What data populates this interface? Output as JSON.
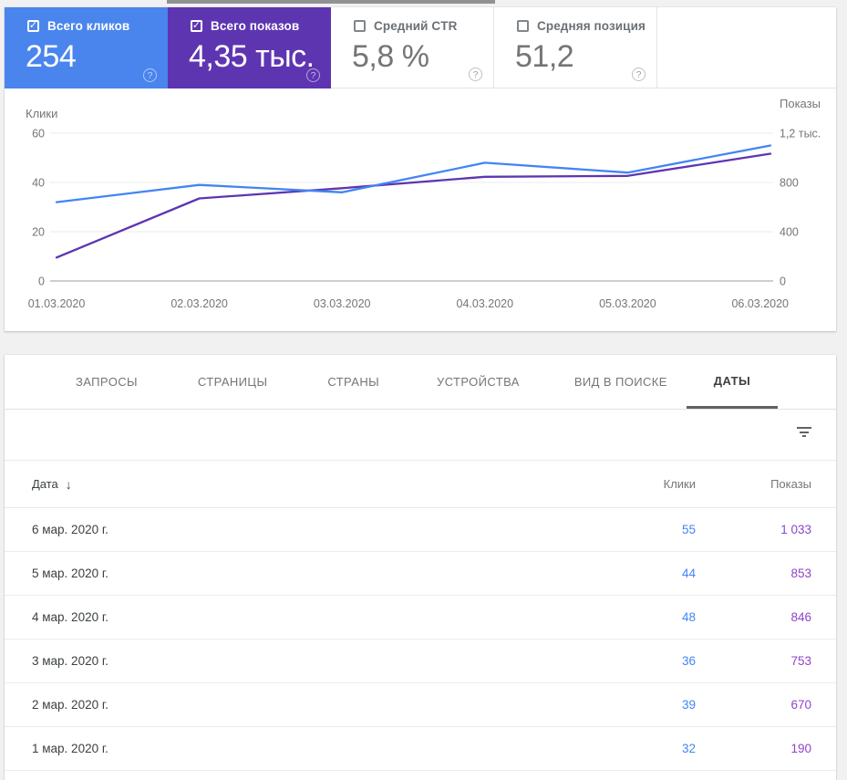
{
  "colors": {
    "clicks_card_bg": "#4a85ee",
    "impressions_card_bg": "#5e35b1",
    "clicks_line": "#4285f4",
    "impressions_line": "#5e35b1",
    "table_clicks_value": "#4285f4",
    "table_impressions_value": "#8f44c8",
    "page_bg": "#f1f1f2",
    "active_tab_underline": "#5f6368"
  },
  "icons": {
    "check": "✓",
    "help": "?",
    "sort_desc": "↓"
  },
  "summary": {
    "cards": [
      {
        "id": "clicks",
        "label": "Всего кликов",
        "value": "254",
        "selected": true
      },
      {
        "id": "impressions",
        "label": "Всего показов",
        "value": "4,35 тыс.",
        "selected": true
      },
      {
        "id": "ctr",
        "label": "Средний CTR",
        "value": "5,8 %",
        "selected": false
      },
      {
        "id": "position",
        "label": "Средняя позиция",
        "value": "51,2",
        "selected": false
      }
    ]
  },
  "chart_data": {
    "type": "line",
    "x": [
      "01.03.2020",
      "02.03.2020",
      "03.03.2020",
      "04.03.2020",
      "05.03.2020",
      "06.03.2020"
    ],
    "series": [
      {
        "name": "Клики",
        "axis": "left",
        "color": "#4285f4",
        "values": [
          32,
          39,
          36,
          48,
          44,
          55
        ]
      },
      {
        "name": "Показы",
        "axis": "right",
        "color": "#5e35b1",
        "values": [
          190,
          670,
          753,
          846,
          853,
          1033
        ]
      }
    ],
    "left_axis": {
      "label": "Клики",
      "max": 60,
      "min": 0,
      "ticks": [
        "60",
        "40",
        "20",
        "0"
      ]
    },
    "right_axis": {
      "label": "Показы",
      "max": 1200,
      "min": 0,
      "ticks": [
        "1,2 тыс.",
        "800",
        "400",
        "0"
      ]
    },
    "grid": true,
    "legend_position": "none"
  },
  "tabs": {
    "items": [
      "ЗАПРОСЫ",
      "СТРАНИЦЫ",
      "СТРАНЫ",
      "УСТРОЙСТВА",
      "ВИД В ПОИСКЕ",
      "ДАТЫ"
    ],
    "active": "ДАТЫ"
  },
  "table": {
    "columns": {
      "date": "Дата",
      "clicks": "Клики",
      "impressions": "Показы"
    },
    "sort_column": "Дата",
    "sort_direction": "desc",
    "rows": [
      {
        "date": "6 мар. 2020 г.",
        "clicks": "55",
        "impressions": "1 033"
      },
      {
        "date": "5 мар. 2020 г.",
        "clicks": "44",
        "impressions": "853"
      },
      {
        "date": "4 мар. 2020 г.",
        "clicks": "48",
        "impressions": "846"
      },
      {
        "date": "3 мар. 2020 г.",
        "clicks": "36",
        "impressions": "753"
      },
      {
        "date": "2 мар. 2020 г.",
        "clicks": "39",
        "impressions": "670"
      },
      {
        "date": "1 мар. 2020 г.",
        "clicks": "32",
        "impressions": "190"
      }
    ]
  }
}
